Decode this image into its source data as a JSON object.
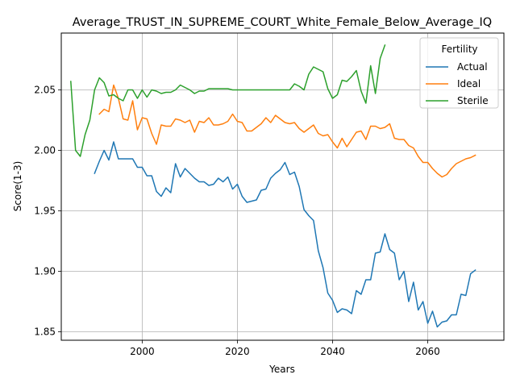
{
  "chart_data": {
    "type": "line",
    "title": "Average_TRUST_IN_SUPREME_COURT_White_Female_Below_Average_IQ",
    "xlabel": "Years",
    "ylabel": "Score(1-3)",
    "xlim": [
      1983,
      2076
    ],
    "ylim": [
      1.843,
      2.097
    ],
    "x_ticks": [
      2000,
      2020,
      2040,
      2060
    ],
    "y_ticks": [
      1.85,
      1.9,
      1.95,
      2.0,
      2.05
    ],
    "grid": true,
    "legend": {
      "title": "Fertility",
      "position": "top-right"
    },
    "series": [
      {
        "name": "Actual",
        "color": "#1f77b4",
        "x": [
          1990,
          1991,
          1992,
          1993,
          1994,
          1995,
          1996,
          1997,
          1998,
          1999,
          2000,
          2001,
          2002,
          2003,
          2004,
          2005,
          2006,
          2007,
          2008,
          2009,
          2010,
          2011,
          2012,
          2013,
          2014,
          2015,
          2016,
          2017,
          2018,
          2019,
          2020,
          2021,
          2022,
          2023,
          2024,
          2025,
          2026,
          2027,
          2028,
          2029,
          2030,
          2031,
          2032,
          2033,
          2034,
          2035,
          2036,
          2037,
          2038,
          2039,
          2040,
          2041,
          2042,
          2043,
          2044,
          2045,
          2046,
          2047,
          2048,
          2049,
          2050,
          2051,
          2052,
          2053,
          2054,
          2055,
          2056,
          2057,
          2058,
          2059,
          2060,
          2061,
          2062,
          2063,
          2064,
          2065,
          2066,
          2067,
          2068,
          2069,
          2070
        ],
        "values": [
          1.981,
          1.991,
          2.0,
          1.992,
          2.007,
          1.993,
          1.993,
          1.993,
          1.993,
          1.986,
          1.986,
          1.979,
          1.979,
          1.966,
          1.962,
          1.969,
          1.965,
          1.989,
          1.978,
          1.985,
          1.981,
          1.977,
          1.974,
          1.974,
          1.971,
          1.972,
          1.977,
          1.974,
          1.978,
          1.968,
          1.972,
          1.962,
          1.957,
          1.958,
          1.959,
          1.967,
          1.968,
          1.977,
          1.981,
          1.984,
          1.99,
          1.98,
          1.982,
          1.97,
          1.951,
          1.946,
          1.942,
          1.917,
          1.903,
          1.882,
          1.876,
          1.866,
          1.869,
          1.868,
          1.865,
          1.884,
          1.881,
          1.893,
          1.893,
          1.915,
          1.916,
          1.931,
          1.918,
          1.915,
          1.893,
          1.9,
          1.875,
          1.891,
          1.868,
          1.875,
          1.857,
          1.867,
          1.854,
          1.858,
          1.859,
          1.864,
          1.864,
          1.881,
          1.88,
          1.898,
          1.901
        ]
      },
      {
        "name": "Ideal",
        "color": "#ff7f0e",
        "x": [
          1991,
          1992,
          1993,
          1994,
          1995,
          1996,
          1997,
          1998,
          1999,
          2000,
          2001,
          2002,
          2003,
          2004,
          2005,
          2006,
          2007,
          2008,
          2009,
          2010,
          2011,
          2012,
          2013,
          2014,
          2015,
          2016,
          2017,
          2018,
          2019,
          2020,
          2021,
          2022,
          2023,
          2024,
          2025,
          2026,
          2027,
          2028,
          2029,
          2030,
          2031,
          2032,
          2033,
          2034,
          2035,
          2036,
          2037,
          2038,
          2039,
          2040,
          2041,
          2042,
          2043,
          2044,
          2045,
          2046,
          2047,
          2048,
          2049,
          2050,
          2051,
          2052,
          2053,
          2054,
          2055,
          2056,
          2057,
          2058,
          2059,
          2060,
          2061,
          2062,
          2063,
          2064,
          2065,
          2066,
          2067,
          2068,
          2069,
          2070
        ],
        "values": [
          2.03,
          2.034,
          2.032,
          2.054,
          2.043,
          2.026,
          2.025,
          2.041,
          2.017,
          2.027,
          2.026,
          2.014,
          2.005,
          2.021,
          2.02,
          2.02,
          2.026,
          2.025,
          2.023,
          2.025,
          2.015,
          2.024,
          2.023,
          2.027,
          2.021,
          2.021,
          2.022,
          2.024,
          2.03,
          2.024,
          2.023,
          2.016,
          2.016,
          2.019,
          2.022,
          2.027,
          2.023,
          2.029,
          2.026,
          2.023,
          2.022,
          2.023,
          2.018,
          2.015,
          2.018,
          2.021,
          2.014,
          2.012,
          2.013,
          2.007,
          2.002,
          2.01,
          2.003,
          2.009,
          2.015,
          2.016,
          2.009,
          2.02,
          2.02,
          2.018,
          2.019,
          2.022,
          2.01,
          2.009,
          2.009,
          2.004,
          2.002,
          1.995,
          1.99,
          1.99,
          1.985,
          1.981,
          1.978,
          1.98,
          1.985,
          1.989,
          1.991,
          1.993,
          1.994,
          1.996
        ]
      },
      {
        "name": "Sterile",
        "color": "#2ca02c",
        "x": [
          1985,
          1986,
          1987,
          1988,
          1989,
          1990,
          1991,
          1992,
          1993,
          1994,
          1995,
          1996,
          1997,
          1998,
          1999,
          2000,
          2001,
          2002,
          2003,
          2004,
          2005,
          2006,
          2007,
          2008,
          2009,
          2010,
          2011,
          2012,
          2013,
          2014,
          2015,
          2016,
          2017,
          2018,
          2019,
          2020,
          2021,
          2022,
          2023,
          2024,
          2025,
          2026,
          2027,
          2028,
          2029,
          2030,
          2031,
          2032,
          2033,
          2034,
          2035,
          2036,
          2037,
          2038,
          2039,
          2040,
          2041,
          2042,
          2043,
          2044,
          2045,
          2046,
          2047,
          2048,
          2049,
          2050,
          2051
        ],
        "values": [
          2.057,
          2.0,
          1.995,
          2.013,
          2.025,
          2.05,
          2.06,
          2.056,
          2.045,
          2.046,
          2.043,
          2.041,
          2.05,
          2.05,
          2.043,
          2.05,
          2.044,
          2.05,
          2.049,
          2.047,
          2.048,
          2.048,
          2.05,
          2.054,
          2.052,
          2.05,
          2.047,
          2.049,
          2.049,
          2.051,
          2.051,
          2.051,
          2.051,
          2.051,
          2.05,
          2.05,
          2.05,
          2.05,
          2.05,
          2.05,
          2.05,
          2.05,
          2.05,
          2.05,
          2.05,
          2.05,
          2.05,
          2.055,
          2.053,
          2.05,
          2.063,
          2.069,
          2.067,
          2.065,
          2.051,
          2.043,
          2.046,
          2.058,
          2.057,
          2.061,
          2.066,
          2.049,
          2.039,
          2.07,
          2.047,
          2.076,
          2.087
        ]
      }
    ]
  }
}
